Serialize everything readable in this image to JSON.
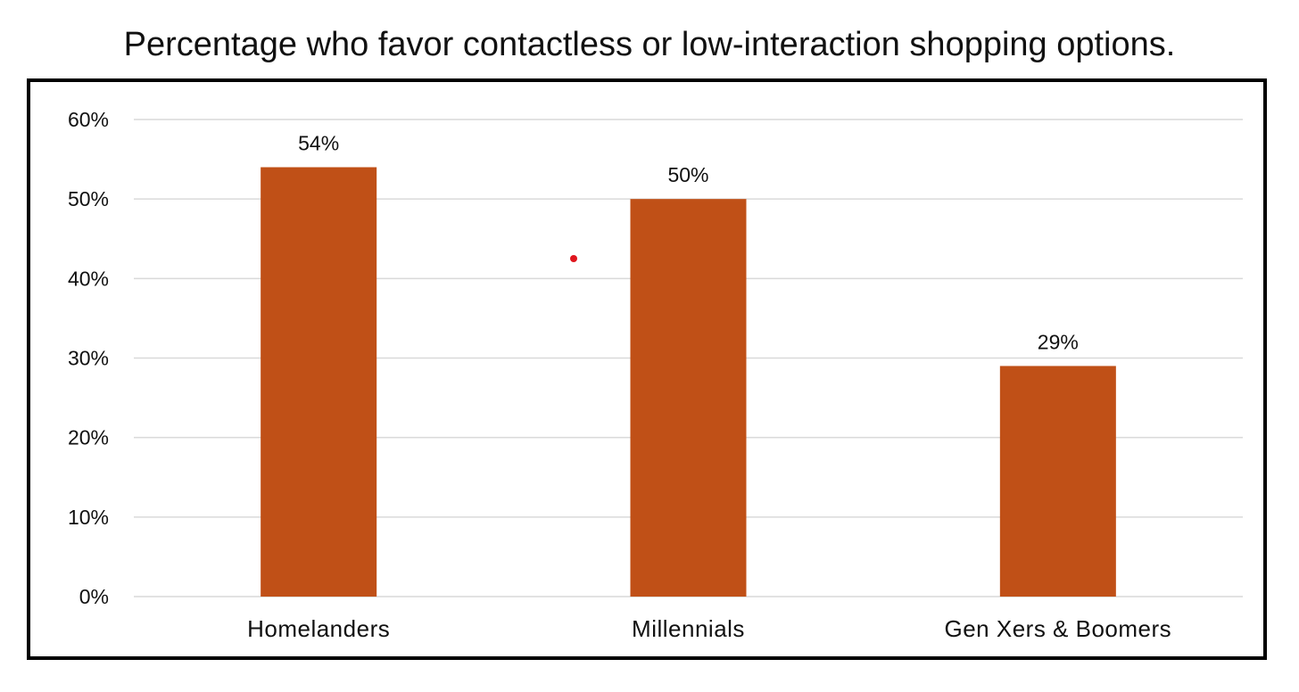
{
  "chart_data": {
    "type": "bar",
    "title": "Percentage who favor contactless or low-interaction shopping options.",
    "categories": [
      "Homelanders",
      "Millennials",
      "Gen Xers & Boomers"
    ],
    "values": [
      54,
      50,
      29
    ],
    "data_labels": [
      "54%",
      "50%",
      "29%"
    ],
    "yticks": [
      "0%",
      "10%",
      "20%",
      "30%",
      "40%",
      "50%",
      "60%"
    ],
    "ytick_values": [
      0,
      10,
      20,
      30,
      40,
      50,
      60
    ],
    "ylim": [
      0,
      60
    ],
    "xlabel": "",
    "ylabel": "",
    "grid": true,
    "legend": "none",
    "bar_color": "#C05017",
    "marker_color": "#E0161E"
  }
}
